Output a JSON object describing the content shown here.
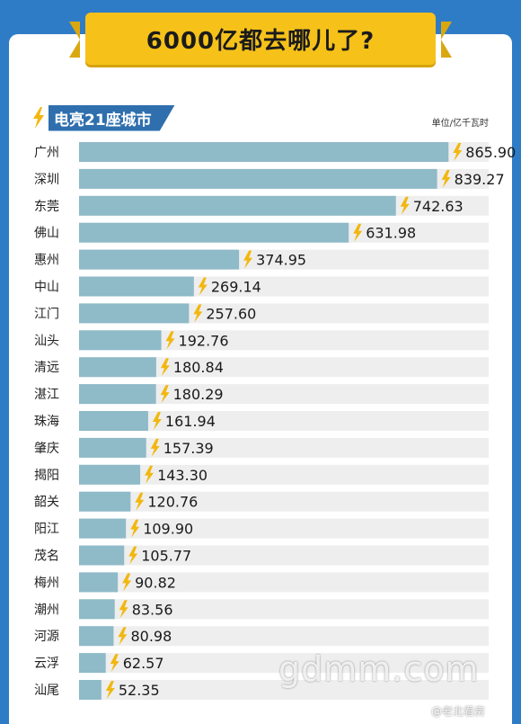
{
  "header": {
    "title": "6000亿都去哪儿了?",
    "subtitle": "电亮21座城市",
    "unit": "单位/亿千瓦时"
  },
  "watermark": {
    "site": "gdmm.com",
    "weibo": "@老北看房"
  },
  "colors": {
    "background": "#2f7cc6",
    "bar": "#8fbac8",
    "track": "#eeeeee",
    "banner": "#f6c21a",
    "bolt": "#f2b70f"
  },
  "chart_data": {
    "type": "bar",
    "orientation": "horizontal",
    "title": "6000亿都去哪儿了?",
    "subtitle": "电亮21座城市",
    "unit": "单位/亿千瓦时",
    "categories": [
      "广州",
      "深圳",
      "东莞",
      "佛山",
      "惠州",
      "中山",
      "江门",
      "汕头",
      "清远",
      "湛江",
      "珠海",
      "肇庆",
      "揭阳",
      "韶关",
      "阳江",
      "茂名",
      "梅州",
      "潮州",
      "河源",
      "云浮",
      "汕尾"
    ],
    "values": [
      865.9,
      839.27,
      742.63,
      631.98,
      374.95,
      269.14,
      257.6,
      192.76,
      180.84,
      180.29,
      161.94,
      157.39,
      143.3,
      120.76,
      109.9,
      105.77,
      90.82,
      83.56,
      80.98,
      62.57,
      52.35
    ],
    "value_labels": [
      "865.90",
      "839.27",
      "742.63",
      "631.98",
      "374.95",
      "269.14",
      "257.60",
      "192.76",
      "180.84",
      "180.29",
      "161.94",
      "157.39",
      "143.30",
      "120.76",
      "109.90",
      "105.77",
      "90.82",
      "83.56",
      "80.98",
      "62.57",
      "52.35"
    ],
    "grid": false
  }
}
